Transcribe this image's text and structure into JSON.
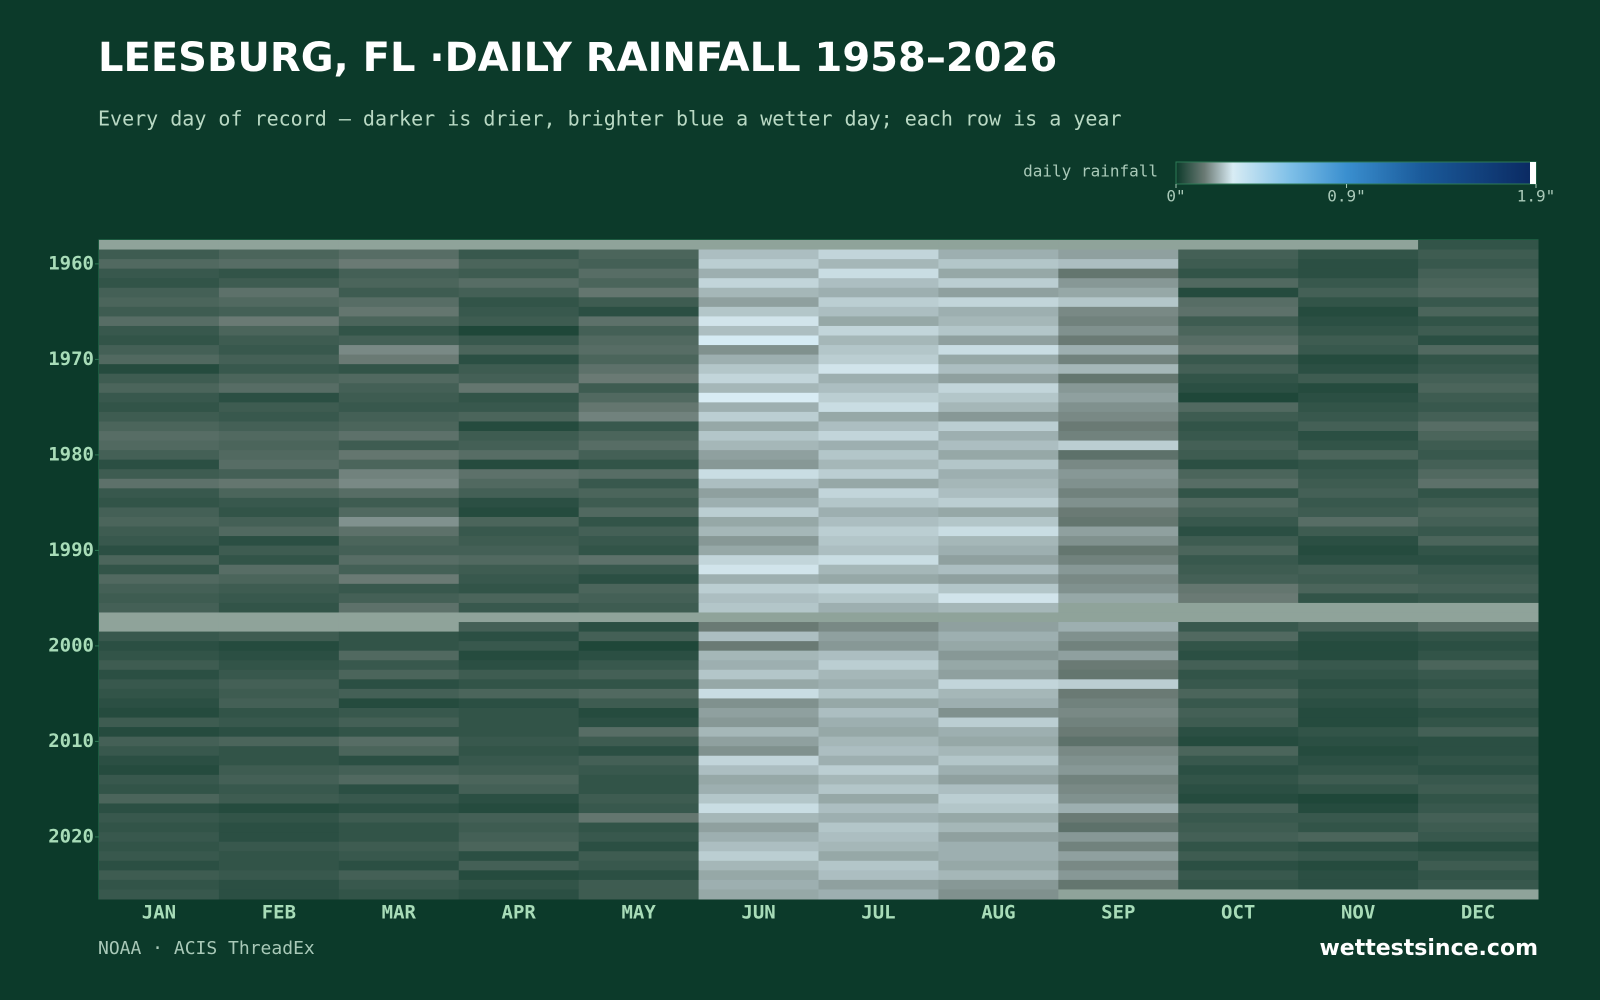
{
  "chart_data": {
    "type": "heatmap",
    "title": "LEESBURG, FL ·DAILY RAINFALL 1958–2026",
    "subtitle": "Every day of record — darker is drier, brighter blue a wetter day; each row is a year",
    "legend_title": "daily rainfall",
    "zlim": [
      0,
      1.9
    ],
    "zticks": [
      {
        "value": 0,
        "label": "0\""
      },
      {
        "value": 0.9,
        "label": "0.9\""
      },
      {
        "value": 1.9,
        "label": "1.9\""
      }
    ],
    "colorscale": [
      [
        0,
        "#0c3a2a"
      ],
      [
        0.15,
        "#6a7a74"
      ],
      [
        0.3,
        "#d8ecf4"
      ],
      [
        0.6,
        "#7fc0e8"
      ],
      [
        0.9,
        "#3a8fcf"
      ],
      [
        1.3,
        "#1a5a9a"
      ],
      [
        1.9,
        "#0a2860"
      ]
    ],
    "missing_color": "#8fa39a",
    "categories": [
      "JAN",
      "FEB",
      "MAR",
      "APR",
      "MAY",
      "JUN",
      "JUL",
      "AUG",
      "SEP",
      "OCT",
      "NOV",
      "DEC"
    ],
    "y": [
      1958,
      1959,
      1960,
      1961,
      1962,
      1963,
      1964,
      1965,
      1966,
      1967,
      1968,
      1969,
      1970,
      1971,
      1972,
      1973,
      1974,
      1975,
      1976,
      1977,
      1978,
      1979,
      1980,
      1981,
      1982,
      1983,
      1984,
      1985,
      1986,
      1987,
      1988,
      1989,
      1990,
      1991,
      1992,
      1993,
      1994,
      1995,
      1996,
      1997,
      1998,
      1999,
      2000,
      2001,
      2002,
      2003,
      2004,
      2005,
      2006,
      2007,
      2008,
      2009,
      2010,
      2011,
      2012,
      2013,
      2014,
      2015,
      2016,
      2017,
      2018,
      2019,
      2020,
      2021,
      2022,
      2023,
      2024,
      2025,
      2026
    ],
    "ylim": [
      1957.5,
      2026.5
    ],
    "yticks": [
      1960,
      1970,
      1980,
      1990,
      2000,
      2010,
      2020
    ],
    "values": [
      [
        null,
        null,
        null,
        null,
        null,
        null,
        null,
        null,
        null,
        null,
        null,
        0.06
      ],
      [
        0.08,
        0.1,
        0.12,
        0.07,
        0.1,
        0.24,
        0.27,
        0.22,
        0.2,
        0.09,
        0.06,
        0.08
      ],
      [
        0.11,
        0.12,
        0.15,
        0.1,
        0.09,
        0.26,
        0.23,
        0.25,
        0.24,
        0.08,
        0.05,
        0.07
      ],
      [
        0.07,
        0.06,
        0.09,
        0.08,
        0.12,
        0.22,
        0.28,
        0.21,
        0.14,
        0.06,
        0.05,
        0.09
      ],
      [
        0.06,
        0.08,
        0.1,
        0.12,
        0.1,
        0.27,
        0.24,
        0.26,
        0.19,
        0.11,
        0.07,
        0.1
      ],
      [
        0.09,
        0.13,
        0.08,
        0.09,
        0.14,
        0.23,
        0.22,
        0.2,
        0.21,
        0.04,
        0.09,
        0.11
      ],
      [
        0.1,
        0.11,
        0.12,
        0.06,
        0.08,
        0.2,
        0.26,
        0.27,
        0.25,
        0.12,
        0.06,
        0.07
      ],
      [
        0.08,
        0.09,
        0.14,
        0.07,
        0.05,
        0.25,
        0.24,
        0.22,
        0.17,
        0.13,
        0.04,
        0.1
      ],
      [
        0.12,
        0.15,
        0.1,
        0.08,
        0.13,
        0.29,
        0.21,
        0.23,
        0.16,
        0.08,
        0.05,
        0.06
      ],
      [
        0.07,
        0.1,
        0.06,
        0.03,
        0.09,
        0.24,
        0.27,
        0.25,
        0.18,
        0.1,
        0.06,
        0.08
      ],
      [
        0.06,
        0.08,
        0.09,
        0.07,
        0.11,
        0.31,
        0.23,
        0.2,
        0.15,
        0.12,
        0.08,
        0.05
      ],
      [
        0.09,
        0.07,
        0.17,
        0.1,
        0.12,
        0.18,
        0.25,
        0.28,
        0.22,
        0.14,
        0.07,
        0.11
      ],
      [
        0.11,
        0.09,
        0.15,
        0.05,
        0.1,
        0.22,
        0.26,
        0.21,
        0.16,
        0.07,
        0.04,
        0.06
      ],
      [
        0.04,
        0.07,
        0.06,
        0.08,
        0.13,
        0.25,
        0.29,
        0.24,
        0.23,
        0.09,
        0.05,
        0.07
      ],
      [
        0.08,
        0.1,
        0.11,
        0.09,
        0.15,
        0.27,
        0.22,
        0.2,
        0.14,
        0.06,
        0.08,
        0.09
      ],
      [
        0.1,
        0.12,
        0.09,
        0.14,
        0.08,
        0.23,
        0.24,
        0.27,
        0.19,
        0.05,
        0.04,
        0.1
      ],
      [
        0.07,
        0.05,
        0.08,
        0.06,
        0.11,
        0.3,
        0.26,
        0.25,
        0.2,
        0.03,
        0.05,
        0.08
      ],
      [
        0.06,
        0.08,
        0.07,
        0.07,
        0.14,
        0.22,
        0.28,
        0.23,
        0.18,
        0.11,
        0.06,
        0.07
      ],
      [
        0.08,
        0.07,
        0.09,
        0.1,
        0.16,
        0.26,
        0.21,
        0.19,
        0.17,
        0.08,
        0.07,
        0.09
      ],
      [
        0.1,
        0.09,
        0.1,
        0.04,
        0.07,
        0.21,
        0.24,
        0.26,
        0.15,
        0.06,
        0.09,
        0.12
      ],
      [
        0.12,
        0.11,
        0.13,
        0.08,
        0.1,
        0.25,
        0.27,
        0.22,
        0.16,
        0.07,
        0.05,
        0.1
      ],
      [
        0.11,
        0.1,
        0.08,
        0.09,
        0.12,
        0.23,
        0.22,
        0.24,
        0.26,
        0.09,
        0.06,
        0.08
      ],
      [
        0.09,
        0.11,
        0.14,
        0.12,
        0.09,
        0.2,
        0.25,
        0.21,
        0.13,
        0.08,
        0.1,
        0.07
      ],
      [
        0.05,
        0.12,
        0.1,
        0.04,
        0.06,
        0.19,
        0.23,
        0.25,
        0.17,
        0.05,
        0.06,
        0.09
      ],
      [
        0.08,
        0.09,
        0.16,
        0.13,
        0.12,
        0.28,
        0.26,
        0.22,
        0.19,
        0.1,
        0.07,
        0.11
      ],
      [
        0.13,
        0.14,
        0.17,
        0.11,
        0.07,
        0.24,
        0.21,
        0.23,
        0.18,
        0.12,
        0.08,
        0.13
      ],
      [
        0.07,
        0.1,
        0.12,
        0.09,
        0.1,
        0.2,
        0.27,
        0.24,
        0.16,
        0.06,
        0.09,
        0.06
      ],
      [
        0.06,
        0.07,
        0.08,
        0.05,
        0.08,
        0.22,
        0.25,
        0.26,
        0.18,
        0.11,
        0.07,
        0.08
      ],
      [
        0.09,
        0.06,
        0.11,
        0.04,
        0.11,
        0.26,
        0.22,
        0.21,
        0.15,
        0.09,
        0.08,
        0.1
      ],
      [
        0.1,
        0.09,
        0.18,
        0.1,
        0.06,
        0.21,
        0.24,
        0.25,
        0.14,
        0.07,
        0.12,
        0.09
      ],
      [
        0.08,
        0.11,
        0.13,
        0.07,
        0.09,
        0.23,
        0.26,
        0.28,
        0.2,
        0.05,
        0.08,
        0.07
      ],
      [
        0.07,
        0.05,
        0.1,
        0.08,
        0.07,
        0.19,
        0.25,
        0.23,
        0.18,
        0.08,
        0.05,
        0.1
      ],
      [
        0.05,
        0.08,
        0.09,
        0.09,
        0.06,
        0.21,
        0.24,
        0.22,
        0.14,
        0.1,
        0.04,
        0.06
      ],
      [
        0.1,
        0.06,
        0.12,
        0.11,
        0.13,
        0.27,
        0.28,
        0.2,
        0.16,
        0.07,
        0.05,
        0.05
      ],
      [
        0.06,
        0.12,
        0.09,
        0.08,
        0.07,
        0.29,
        0.23,
        0.24,
        0.19,
        0.08,
        0.09,
        0.07
      ],
      [
        0.11,
        0.1,
        0.15,
        0.07,
        0.05,
        0.22,
        0.21,
        0.2,
        0.17,
        0.09,
        0.08,
        0.08
      ],
      [
        0.09,
        0.08,
        0.07,
        0.06,
        0.1,
        0.26,
        0.27,
        0.25,
        0.18,
        0.14,
        0.1,
        0.09
      ],
      [
        0.08,
        0.07,
        0.09,
        0.1,
        0.09,
        0.24,
        0.25,
        0.29,
        0.21,
        0.15,
        0.06,
        0.07
      ],
      [
        0.09,
        0.06,
        0.13,
        0.07,
        0.08,
        0.25,
        0.22,
        0.23,
        null,
        null,
        null,
        null
      ],
      [
        null,
        null,
        null,
        null,
        null,
        null,
        null,
        null,
        null,
        null,
        null,
        null
      ],
      [
        null,
        null,
        null,
        0.09,
        0.05,
        0.15,
        0.17,
        0.2,
        0.22,
        0.07,
        0.09,
        0.12
      ],
      [
        0.07,
        0.08,
        0.06,
        0.05,
        0.09,
        0.24,
        0.2,
        0.22,
        0.18,
        0.11,
        0.05,
        0.06
      ],
      [
        0.05,
        0.04,
        0.06,
        0.07,
        0.03,
        0.15,
        0.19,
        0.21,
        0.16,
        0.06,
        0.04,
        0.05
      ],
      [
        0.06,
        0.05,
        0.11,
        0.04,
        0.05,
        0.23,
        0.24,
        0.19,
        0.2,
        0.05,
        0.04,
        0.06
      ],
      [
        0.08,
        0.06,
        0.07,
        0.05,
        0.07,
        0.22,
        0.26,
        0.21,
        0.15,
        0.09,
        0.07,
        0.1
      ],
      [
        0.05,
        0.07,
        0.1,
        0.08,
        0.09,
        0.25,
        0.23,
        0.2,
        0.14,
        0.06,
        0.06,
        0.07
      ],
      [
        0.07,
        0.09,
        0.05,
        0.06,
        0.06,
        0.21,
        0.22,
        0.27,
        0.26,
        0.07,
        0.05,
        0.06
      ],
      [
        0.06,
        0.08,
        0.09,
        0.1,
        0.11,
        0.28,
        0.25,
        0.23,
        0.15,
        0.1,
        0.06,
        0.08
      ],
      [
        0.05,
        0.09,
        0.04,
        0.05,
        0.08,
        0.18,
        0.21,
        0.22,
        0.16,
        0.07,
        0.05,
        0.07
      ],
      [
        0.04,
        0.06,
        0.07,
        0.06,
        0.04,
        0.2,
        0.24,
        0.18,
        0.17,
        0.09,
        0.04,
        0.05
      ],
      [
        0.08,
        0.07,
        0.09,
        0.06,
        0.05,
        0.19,
        0.22,
        0.26,
        0.16,
        0.08,
        0.04,
        0.06
      ],
      [
        0.04,
        0.05,
        0.06,
        0.06,
        0.12,
        0.23,
        0.21,
        0.22,
        0.15,
        0.05,
        0.06,
        0.09
      ],
      [
        0.09,
        0.1,
        0.12,
        0.07,
        0.08,
        0.2,
        0.23,
        0.21,
        0.13,
        0.04,
        0.05,
        0.05
      ],
      [
        0.07,
        0.06,
        0.1,
        0.06,
        0.05,
        0.18,
        0.24,
        0.23,
        0.17,
        0.1,
        0.04,
        0.05
      ],
      [
        0.05,
        0.06,
        0.05,
        0.07,
        0.09,
        0.27,
        0.22,
        0.25,
        0.18,
        0.07,
        0.05,
        0.06
      ],
      [
        0.04,
        0.08,
        0.09,
        0.08,
        0.07,
        0.24,
        0.26,
        0.22,
        0.19,
        0.05,
        0.06,
        0.05
      ],
      [
        0.07,
        0.09,
        0.11,
        0.1,
        0.06,
        0.21,
        0.23,
        0.2,
        0.16,
        0.06,
        0.08,
        0.07
      ],
      [
        0.06,
        0.07,
        0.05,
        0.09,
        0.06,
        0.22,
        0.25,
        0.24,
        0.17,
        0.05,
        0.06,
        0.08
      ],
      [
        0.1,
        0.08,
        0.07,
        0.05,
        0.08,
        0.25,
        0.21,
        0.26,
        0.18,
        0.04,
        0.03,
        0.06
      ],
      [
        0.05,
        0.04,
        0.05,
        0.04,
        0.07,
        0.28,
        0.24,
        0.25,
        0.22,
        0.09,
        0.04,
        0.07
      ],
      [
        0.07,
        0.06,
        0.08,
        0.09,
        0.14,
        0.23,
        0.22,
        0.21,
        0.15,
        0.07,
        0.07,
        0.09
      ],
      [
        0.06,
        0.05,
        0.06,
        0.08,
        0.06,
        0.2,
        0.25,
        0.23,
        0.13,
        0.08,
        0.06,
        0.08
      ],
      [
        0.07,
        0.05,
        0.06,
        0.09,
        0.07,
        0.22,
        0.24,
        0.2,
        0.19,
        0.09,
        0.1,
        0.07
      ],
      [
        0.06,
        0.07,
        0.08,
        0.1,
        0.05,
        0.24,
        0.23,
        0.22,
        0.16,
        0.06,
        0.05,
        0.04
      ],
      [
        0.07,
        0.06,
        0.07,
        0.05,
        0.08,
        0.26,
        0.21,
        0.22,
        0.2,
        0.08,
        0.07,
        0.06
      ],
      [
        0.05,
        0.06,
        0.05,
        0.09,
        0.07,
        0.23,
        0.25,
        0.21,
        0.17,
        0.05,
        0.04,
        0.08
      ],
      [
        0.08,
        0.07,
        0.09,
        0.04,
        0.05,
        0.21,
        0.24,
        0.23,
        0.19,
        0.07,
        0.05,
        0.06
      ],
      [
        0.06,
        0.05,
        0.07,
        0.06,
        0.08,
        0.22,
        0.2,
        0.19,
        0.14,
        0.06,
        0.05,
        0.07
      ],
      [
        0.07,
        0.05,
        0.06,
        0.05,
        0.08,
        0.21,
        0.22,
        0.18,
        null,
        null,
        null,
        null
      ]
    ],
    "source": "NOAA · ACIS ThreadEx",
    "brand": "wettestsince.com"
  }
}
